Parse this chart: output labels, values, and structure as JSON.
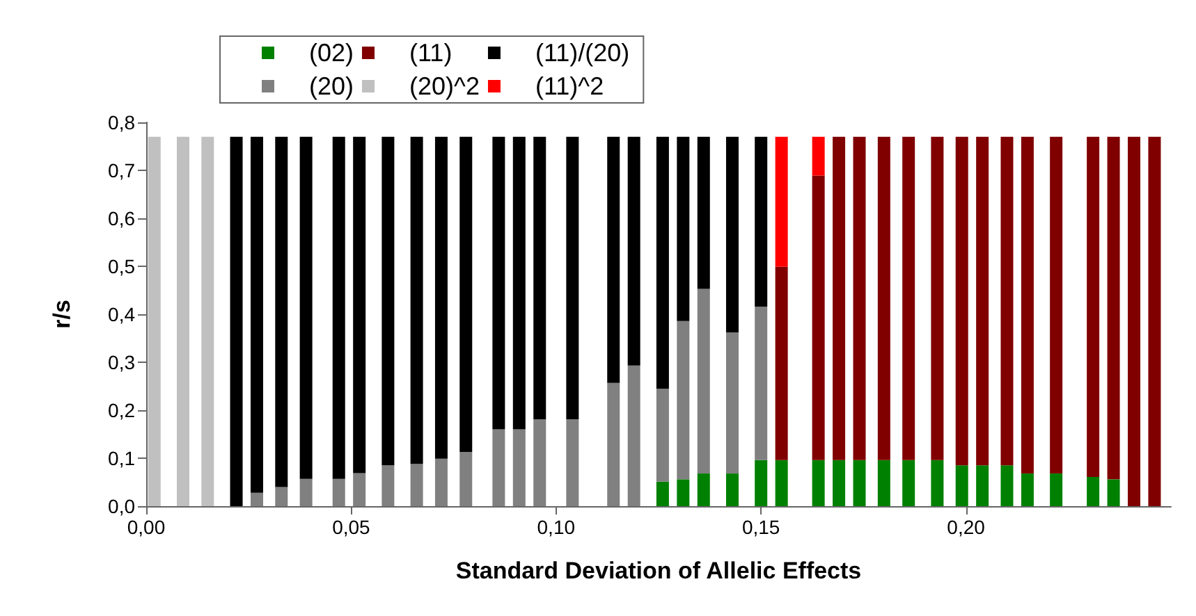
{
  "chart_data": {
    "type": "bar",
    "stacked": true,
    "xlabel": "Standard Deviation of Allelic Effects",
    "ylabel": "r/s",
    "x": [
      0.002,
      0.009,
      0.015,
      0.022,
      0.027,
      0.033,
      0.039,
      0.047,
      0.052,
      0.059,
      0.066,
      0.072,
      0.078,
      0.086,
      0.091,
      0.096,
      0.104,
      0.114,
      0.119,
      0.126,
      0.131,
      0.136,
      0.143,
      0.15,
      0.155,
      0.164,
      0.169,
      0.174,
      0.18,
      0.186,
      0.193,
      0.199,
      0.204,
      0.21,
      0.215,
      0.222,
      0.231,
      0.236,
      0.241,
      0.246
    ],
    "series": [
      {
        "name": "(02)",
        "color": "#008000",
        "values": [
          null,
          null,
          null,
          null,
          null,
          null,
          null,
          null,
          null,
          null,
          null,
          null,
          null,
          null,
          null,
          null,
          null,
          null,
          null,
          0.051,
          0.056,
          0.068,
          0.068,
          0.096,
          0.096,
          0.096,
          0.096,
          0.096,
          0.096,
          0.096,
          0.096,
          0.085,
          0.085,
          0.085,
          0.068,
          0.068,
          0.061,
          0.056,
          null,
          null
        ]
      },
      {
        "name": "(20)",
        "color": "#808080",
        "values": [
          null,
          null,
          null,
          null,
          0.028,
          0.04,
          0.057,
          0.057,
          0.069,
          0.085,
          0.088,
          0.099,
          0.113,
          0.16,
          0.16,
          0.181,
          0.181,
          0.257,
          0.293,
          0.194,
          0.33,
          0.385,
          0.294,
          0.32,
          null,
          null,
          null,
          null,
          null,
          null,
          null,
          null,
          null,
          null,
          null,
          null,
          null,
          null,
          null,
          null
        ]
      },
      {
        "name": "(11)",
        "color": "#800000",
        "values": [
          null,
          null,
          null,
          null,
          null,
          null,
          null,
          null,
          null,
          null,
          null,
          null,
          null,
          null,
          null,
          null,
          null,
          null,
          null,
          null,
          null,
          null,
          null,
          null,
          0.403,
          0.593,
          0.674,
          0.674,
          0.674,
          0.674,
          0.674,
          0.685,
          0.685,
          0.685,
          0.702,
          0.702,
          0.709,
          0.714,
          0.77,
          0.77
        ]
      },
      {
        "name": "(20)^2",
        "color": "#c0c0c0",
        "values": [
          0.77,
          0.77,
          0.77,
          null,
          null,
          null,
          null,
          null,
          null,
          null,
          null,
          null,
          null,
          null,
          null,
          null,
          null,
          null,
          null,
          null,
          null,
          null,
          null,
          null,
          null,
          null,
          null,
          null,
          null,
          null,
          null,
          null,
          null,
          null,
          null,
          null,
          null,
          null,
          null,
          null
        ]
      },
      {
        "name": "(11)/(20)",
        "color": "#000000",
        "values": [
          null,
          null,
          null,
          0.77,
          0.742,
          0.73,
          0.713,
          0.713,
          0.701,
          0.685,
          0.682,
          0.671,
          0.657,
          0.61,
          0.61,
          0.589,
          0.589,
          0.513,
          0.477,
          0.525,
          0.384,
          0.317,
          0.408,
          0.354,
          null,
          null,
          null,
          null,
          null,
          null,
          null,
          null,
          null,
          null,
          null,
          null,
          null,
          null,
          null,
          null
        ]
      },
      {
        "name": "(11)^2",
        "color": "#ff0000",
        "values": [
          null,
          null,
          null,
          null,
          null,
          null,
          null,
          null,
          null,
          null,
          null,
          null,
          null,
          null,
          null,
          null,
          null,
          null,
          null,
          null,
          null,
          null,
          null,
          null,
          0.271,
          0.081,
          null,
          null,
          null,
          null,
          null,
          null,
          null,
          null,
          null,
          null,
          null,
          null,
          null,
          null
        ]
      }
    ],
    "xlim": [
      0,
      0.25
    ],
    "xticks": [
      {
        "value": 0,
        "label": "0,00"
      },
      {
        "value": 0.05,
        "label": "0,05"
      },
      {
        "value": 0.1,
        "label": "0,10"
      },
      {
        "value": 0.15,
        "label": "0,15"
      },
      {
        "value": 0.2,
        "label": "0,20"
      }
    ],
    "ylim": [
      0,
      0.8
    ],
    "yticks": [
      {
        "value": 0,
        "label": "0,0"
      },
      {
        "value": 0.1,
        "label": "0,1"
      },
      {
        "value": 0.2,
        "label": "0,2"
      },
      {
        "value": 0.3,
        "label": "0,3"
      },
      {
        "value": 0.4,
        "label": "0,4"
      },
      {
        "value": 0.5,
        "label": "0,5"
      },
      {
        "value": 0.6,
        "label": "0,6"
      },
      {
        "value": 0.7,
        "label": "0,7"
      },
      {
        "value": 0.8,
        "label": "0,8"
      }
    ],
    "grid": false,
    "legend": "top"
  }
}
